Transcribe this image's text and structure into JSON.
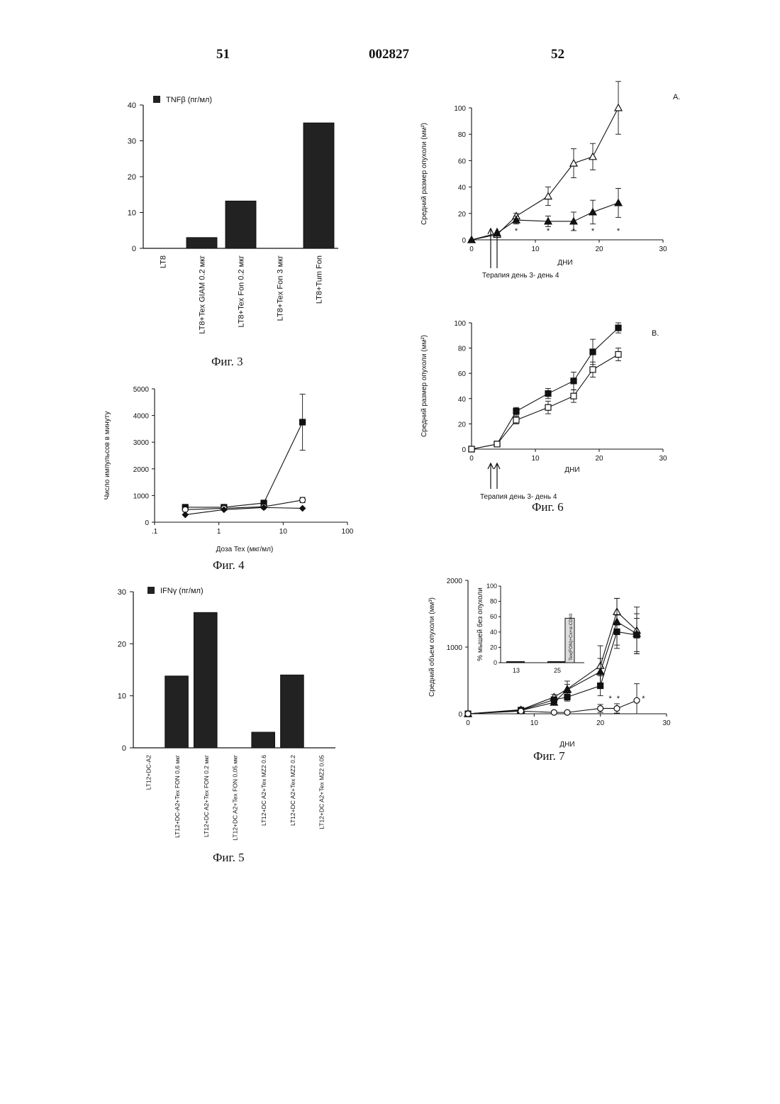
{
  "header": {
    "left_page": "51",
    "patent_number": "002827",
    "right_page": "52"
  },
  "captions": {
    "fig3": "Фиг. 3",
    "fig4": "Фиг. 4",
    "fig5": "Фиг. 5",
    "fig6": "Фиг. 6",
    "fig7": "Фиг. 7"
  },
  "chart_data": [
    {
      "id": "fig3",
      "type": "bar",
      "legend": "TNFβ (пг/мл)",
      "categories": [
        "LT8",
        "LT8+Tex GIAM 0.2 мкг",
        "LT8+Tex Fon 0.2 мкг",
        "LT8+Tex Fon 3 мкг",
        "LT8+Tum Fon"
      ],
      "values": [
        0,
        3,
        13.2,
        0,
        35
      ],
      "ylim": [
        0,
        40
      ],
      "yticks": [
        "0",
        "10",
        "20",
        "30",
        "40"
      ],
      "yticks_num": [
        0,
        10,
        20,
        30,
        40
      ]
    },
    {
      "id": "fig4",
      "type": "line",
      "ylabel": "Число импульсов в минуту",
      "xlabel": "Доза  Tex (мкг/мл)",
      "xscale": "log",
      "xlim": [
        0.1,
        100
      ],
      "ylim": [
        0,
        5000
      ],
      "xticks": [
        ".1",
        "1",
        "10",
        "100"
      ],
      "xticks_num": [
        0.1,
        1,
        10,
        100
      ],
      "yticks": [
        "0",
        "1000",
        "2000",
        "3000",
        "4000",
        "5000"
      ],
      "yticks_num": [
        0,
        1000,
        2000,
        3000,
        4000,
        5000
      ],
      "series": [
        {
          "marker": "square-filled",
          "x": [
            0.3,
            1.2,
            5,
            20
          ],
          "y": [
            560,
            560,
            720,
            3750
          ],
          "err": [
            0,
            0,
            0,
            1050
          ]
        },
        {
          "marker": "circle-open",
          "x": [
            0.3,
            1.2,
            5,
            20
          ],
          "y": [
            470,
            520,
            580,
            830
          ],
          "err": [
            0,
            0,
            0,
            100
          ]
        },
        {
          "marker": "diamond-filled",
          "x": [
            0.3,
            1.2,
            5,
            20
          ],
          "y": [
            280,
            470,
            550,
            520
          ],
          "err": [
            0,
            0,
            0,
            0
          ]
        }
      ]
    },
    {
      "id": "fig5",
      "type": "bar",
      "legend": "IFNγ (пг/мл)",
      "categories": [
        "LT12+DC-A2",
        "LT12+DC-A2+Tex  FON  0,6 мкг",
        "LT12+DC  A2+Tex  FON  0.2 мкг",
        "LT12+DC  A2+Tex  FON  0,05 мкг",
        "LT12+DC  A2+Tex  MZ2  0.6",
        "LT12+DC  A2+Tex  MZ2  0.2",
        "LT12+DC  A2+Tex  MZ2  0.05"
      ],
      "values": [
        0,
        13.8,
        26,
        0,
        3,
        14,
        0
      ],
      "ylim": [
        0,
        30
      ],
      "yticks": [
        "0",
        "10",
        "20",
        "30"
      ],
      "yticks_num": [
        0,
        10,
        20,
        30
      ]
    },
    {
      "id": "fig6a",
      "type": "line",
      "panel_label": "A.",
      "ylabel": "Средний размер опухоли (мм²)",
      "xlabel": "ДНИ",
      "note": "Терапия день 3- день 4",
      "xlim": [
        0,
        30
      ],
      "ylim": [
        0,
        100
      ],
      "xticks": [
        "0",
        "10",
        "20",
        "30"
      ],
      "xticks_num": [
        0,
        10,
        20,
        30
      ],
      "yticks": [
        "0",
        "20",
        "40",
        "60",
        "80",
        "100"
      ],
      "yticks_num": [
        0,
        20,
        40,
        60,
        80,
        100
      ],
      "series": [
        {
          "marker": "triangle-open",
          "x": [
            0,
            4,
            7,
            12,
            16,
            19,
            23
          ],
          "y": [
            0,
            4,
            18,
            33,
            58,
            63,
            100
          ],
          "err": [
            0,
            0,
            2,
            7,
            11,
            10,
            20
          ]
        },
        {
          "marker": "triangle-filled",
          "x": [
            0,
            4,
            7,
            12,
            16,
            19,
            23
          ],
          "y": [
            0,
            5,
            15,
            14,
            14,
            21,
            28
          ],
          "err": [
            0,
            0,
            3,
            4,
            7,
            9,
            11
          ]
        }
      ],
      "significance": [
        "*",
        "*",
        "*",
        "*",
        "*"
      ],
      "significance_x": [
        7,
        12,
        16,
        19,
        23
      ]
    },
    {
      "id": "fig6b",
      "type": "line",
      "panel_label": "B.",
      "ylabel": "Средний размер опухоли (мм²)",
      "xlabel": "ДНИ",
      "note": "Терапия день 3- день 4",
      "xlim": [
        0,
        30
      ],
      "ylim": [
        0,
        100
      ],
      "xticks": [
        "0",
        "10",
        "20",
        "30"
      ],
      "xticks_num": [
        0,
        10,
        20,
        30
      ],
      "yticks": [
        "0",
        "20",
        "40",
        "60",
        "80",
        "100"
      ],
      "yticks_num": [
        0,
        20,
        40,
        60,
        80,
        100
      ],
      "series": [
        {
          "marker": "square-filled",
          "x": [
            0,
            4,
            7,
            12,
            16,
            19,
            23
          ],
          "y": [
            0,
            4,
            30,
            44,
            54,
            77,
            96
          ],
          "err": [
            0,
            0,
            3,
            4,
            7,
            10,
            4
          ]
        },
        {
          "marker": "square-open",
          "x": [
            0,
            4,
            7,
            12,
            16,
            19,
            23
          ],
          "y": [
            0,
            4,
            23,
            33,
            42,
            63,
            75
          ],
          "err": [
            0,
            0,
            3,
            5,
            5,
            6,
            5
          ]
        }
      ]
    },
    {
      "id": "fig7",
      "type": "line",
      "ylabel": "Средний объем опухоли (мм³)",
      "xlabel": "ДНИ",
      "xlim": [
        0,
        30
      ],
      "ylim": [
        0,
        2000
      ],
      "xticks": [
        "0",
        "10",
        "20",
        "30"
      ],
      "xticks_num": [
        0,
        10,
        20,
        30
      ],
      "yticks": [
        "0",
        "1000",
        "2000"
      ],
      "yticks_num": [
        0,
        1000,
        2000
      ],
      "series": [
        {
          "marker": "triangle-open",
          "x": [
            0,
            8,
            13,
            15,
            20,
            22.5,
            25.5
          ],
          "y": [
            0,
            60,
            250,
            370,
            720,
            1530,
            1250
          ],
          "err": [
            0,
            0,
            40,
            120,
            300,
            200,
            350
          ]
        },
        {
          "marker": "triangle-filled",
          "x": [
            0,
            8,
            13,
            15,
            20,
            22.5,
            25.5
          ],
          "y": [
            0,
            50,
            170,
            360,
            630,
            1380,
            1200
          ],
          "err": [
            0,
            0,
            30,
            80,
            200,
            350,
            300
          ]
        },
        {
          "marker": "square-filled",
          "x": [
            0,
            8,
            13,
            15,
            20,
            22.5,
            25.5
          ],
          "y": [
            0,
            55,
            210,
            250,
            420,
            1230,
            1180
          ],
          "err": [
            0,
            0,
            40,
            60,
            150,
            250,
            250
          ]
        },
        {
          "marker": "circle-open",
          "x": [
            0,
            8,
            13,
            15,
            20,
            22.5,
            25.5
          ],
          "y": [
            0,
            40,
            20,
            20,
            80,
            80,
            200
          ],
          "err": [
            0,
            0,
            20,
            20,
            60,
            70,
            250
          ]
        }
      ],
      "significance": [
        "*",
        "*",
        "*"
      ],
      "significance_x": [
        21.5,
        22.7,
        26.5
      ],
      "inset": {
        "ylabel": "% мышей без опухоли",
        "ylim": [
          0,
          100
        ],
        "yticks": [
          "0",
          "20",
          "40",
          "60",
          "80",
          "100"
        ],
        "yticks_num": [
          0,
          20,
          40,
          60,
          80,
          100
        ],
        "categories": [
          "13",
          "25"
        ],
        "values": [
          0,
          58
        ],
        "bar_text": "Tex(FON)+Cx+α-CD40"
      }
    }
  ]
}
